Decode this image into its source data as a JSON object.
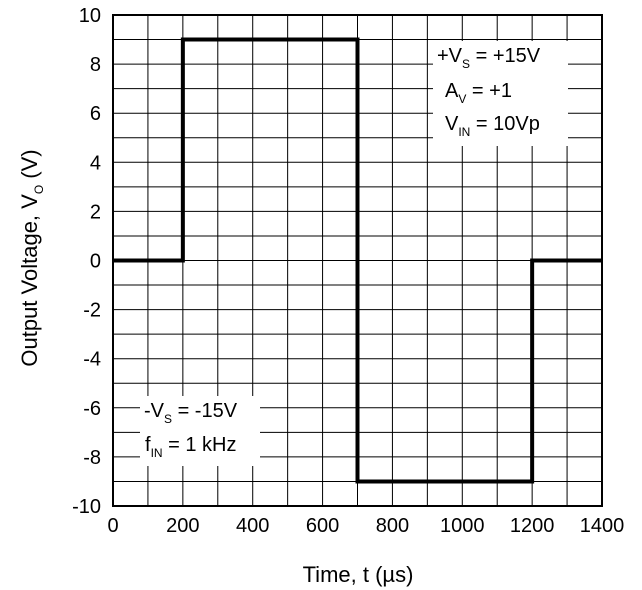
{
  "chart_data": {
    "type": "line",
    "xlabel_main": "Time, t (",
    "xlabel_unit": "µs",
    "xlabel_close": ")",
    "ylabel_main": "Output Voltage, V",
    "ylabel_sub": "O",
    "ylabel_unit": " (V)",
    "xlim": [
      0,
      1400
    ],
    "ylim": [
      -10,
      10
    ],
    "xticks": [
      0,
      200,
      400,
      600,
      800,
      1000,
      1200,
      1400
    ],
    "yticks": [
      -10,
      -8,
      -6,
      -4,
      -2,
      0,
      2,
      4,
      6,
      8,
      10
    ],
    "grid": true,
    "series": [
      {
        "x": [
          0,
          200,
          200,
          700,
          700,
          1200,
          1200,
          1400
        ],
        "y": [
          0,
          0,
          9,
          9,
          -9,
          -9,
          0,
          0
        ]
      }
    ],
    "annotations": {
      "top_right": {
        "line1": {
          "a": "+V",
          "sub": "S",
          "b": " = +15V"
        },
        "line2": {
          "a": "A",
          "sub": "V",
          "b": " = +1"
        },
        "line3": {
          "a": "V",
          "sub": "IN",
          "b": " = 10Vp"
        }
      },
      "bottom_left": {
        "line1": {
          "a": "-V",
          "sub": "S",
          "b": " = -15V"
        },
        "line2": {
          "a": "f",
          "sub": "IN",
          "b": " = 1 kHz"
        }
      }
    }
  }
}
